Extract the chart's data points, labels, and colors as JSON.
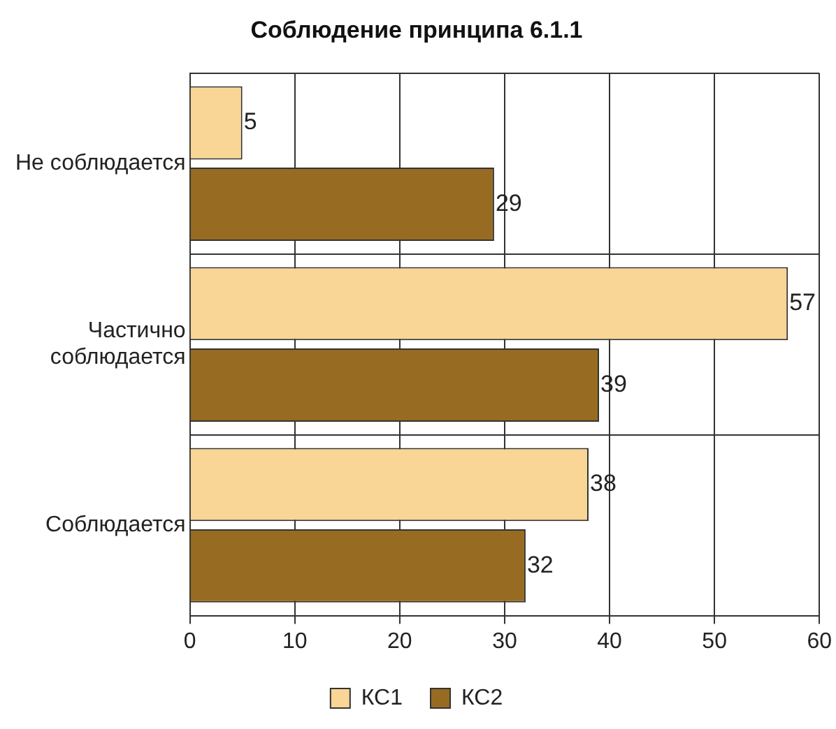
{
  "chart_data": {
    "type": "bar",
    "orientation": "horizontal",
    "title": "Соблюдение принципа 6.1.1",
    "categories": [
      "Не соблюдается",
      "Частично соблюдается",
      "Соблюдается"
    ],
    "series": [
      {
        "name": "КС1",
        "color": "#f9d696",
        "values": [
          5,
          57,
          38
        ]
      },
      {
        "name": "КС2",
        "color": "#976b22",
        "values": [
          29,
          39,
          32
        ]
      }
    ],
    "xlim": [
      0,
      60
    ],
    "xticks": [
      0,
      10,
      20,
      30,
      40,
      50,
      60
    ],
    "grid": true,
    "legend": "bottom",
    "data_labels": true
  }
}
